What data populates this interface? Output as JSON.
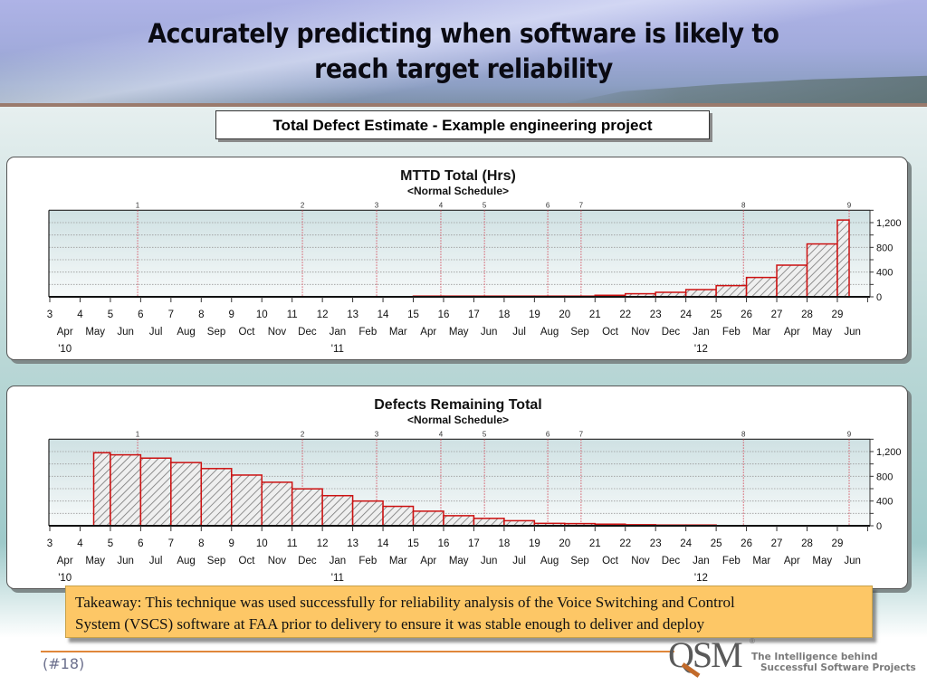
{
  "slide": {
    "title_line1": "Accurately predicting when software is likely to",
    "title_line2": "reach target reliability",
    "subtitle": "Total Defect Estimate - Example engineering project",
    "takeaway_line1": "Takeaway: This technique was used successfully for reliability analysis of the Voice Switching and Control",
    "takeaway_line2": "System (VSCS) software at FAA prior to delivery to ensure it was stable enough to deliver and deploy",
    "page_number": "(#18)",
    "logo_text": "QSM",
    "logo_registered": "®",
    "tagline_line1": "The Intelligence behind",
    "tagline_line2": "Successful Software Projects",
    "colors": {
      "bar_stroke": "#cc1111",
      "bar_hatch": "#777777",
      "milestone_line": "#d44a5a",
      "takeaway_bg": "#fdc766",
      "footer_rule": "#e0873a"
    }
  },
  "chart_data": [
    {
      "type": "bar",
      "title": "MTTD Total (Hrs)",
      "subtitle": "<Normal Schedule>",
      "xlabel": "",
      "ylabel": "",
      "ylim": [
        0,
        1400
      ],
      "yticks": [
        0,
        400,
        800,
        1200
      ],
      "ytick_labels": [
        "0",
        "400",
        "800",
        "1,200"
      ],
      "y_minor_step": 200,
      "grid": true,
      "x_range": [
        3,
        30
      ],
      "x_ticks": [
        3,
        4,
        5,
        6,
        7,
        8,
        9,
        10,
        11,
        12,
        13,
        14,
        15,
        16,
        17,
        18,
        19,
        20,
        21,
        22,
        23,
        24,
        25,
        26,
        27,
        28,
        29
      ],
      "month_labels": [
        "Apr",
        "May",
        "Jun",
        "Jul",
        "Aug",
        "Sep",
        "Oct",
        "Nov",
        "Dec",
        "Jan",
        "Feb",
        "Mar",
        "Apr",
        "May",
        "Jun",
        "Jul",
        "Aug",
        "Sep",
        "Oct",
        "Nov",
        "Dec",
        "Jan",
        "Feb",
        "Mar",
        "Apr",
        "May",
        "Jun"
      ],
      "year_labels": [
        {
          "index": 0,
          "label": "'10"
        },
        {
          "index": 9,
          "label": "'11"
        },
        {
          "index": 21,
          "label": "'12"
        }
      ],
      "milestones": [
        {
          "label": "1",
          "x": 5.9
        },
        {
          "label": "2",
          "x": 11.34
        },
        {
          "label": "3",
          "x": 13.79
        },
        {
          "label": "4",
          "x": 15.91
        },
        {
          "label": "5",
          "x": 17.35
        },
        {
          "label": "6",
          "x": 19.44
        },
        {
          "label": "7",
          "x": 20.54
        },
        {
          "label": "8",
          "x": 25.9
        },
        {
          "label": "9",
          "x": 29.39
        }
      ],
      "bars": [
        {
          "x0": 15,
          "x1": 16,
          "value": 1
        },
        {
          "x0": 16,
          "x1": 17,
          "value": 1
        },
        {
          "x0": 17,
          "x1": 18,
          "value": 2
        },
        {
          "x0": 18,
          "x1": 19,
          "value": 3
        },
        {
          "x0": 19,
          "x1": 20,
          "value": 7
        },
        {
          "x0": 20,
          "x1": 21,
          "value": 10
        },
        {
          "x0": 21,
          "x1": 22,
          "value": 25
        },
        {
          "x0": 22,
          "x1": 23,
          "value": 50
        },
        {
          "x0": 23,
          "x1": 24,
          "value": 73
        },
        {
          "x0": 24,
          "x1": 25,
          "value": 117
        },
        {
          "x0": 25,
          "x1": 26,
          "value": 181
        },
        {
          "x0": 26,
          "x1": 27,
          "value": 313
        },
        {
          "x0": 27,
          "x1": 28,
          "value": 512
        },
        {
          "x0": 28,
          "x1": 29,
          "value": 855
        },
        {
          "x0": 29,
          "x1": 29.39,
          "value": 1242
        }
      ]
    },
    {
      "type": "bar",
      "title": "Defects Remaining Total",
      "subtitle": "<Normal Schedule>",
      "xlabel": "",
      "ylabel": "",
      "ylim": [
        0,
        1400
      ],
      "yticks": [
        0,
        400,
        800,
        1200
      ],
      "ytick_labels": [
        "0",
        "400",
        "800",
        "1,200"
      ],
      "y_minor_step": 200,
      "grid": true,
      "x_range": [
        3,
        30
      ],
      "x_ticks": [
        3,
        4,
        5,
        6,
        7,
        8,
        9,
        10,
        11,
        12,
        13,
        14,
        15,
        16,
        17,
        18,
        19,
        20,
        21,
        22,
        23,
        24,
        25,
        26,
        27,
        28,
        29
      ],
      "month_labels": [
        "Apr",
        "May",
        "Jun",
        "Jul",
        "Aug",
        "Sep",
        "Oct",
        "Nov",
        "Dec",
        "Jan",
        "Feb",
        "Mar",
        "Apr",
        "May",
        "Jun",
        "Jul",
        "Aug",
        "Sep",
        "Oct",
        "Nov",
        "Dec",
        "Jan",
        "Feb",
        "Mar",
        "Apr",
        "May",
        "Jun"
      ],
      "year_labels": [
        {
          "index": 0,
          "label": "'10"
        },
        {
          "index": 9,
          "label": "'11"
        },
        {
          "index": 21,
          "label": "'12"
        }
      ],
      "milestones": [
        {
          "label": "1",
          "x": 5.9
        },
        {
          "label": "2",
          "x": 11.34
        },
        {
          "label": "3",
          "x": 13.79
        },
        {
          "label": "4",
          "x": 15.91
        },
        {
          "label": "5",
          "x": 17.35
        },
        {
          "label": "6",
          "x": 19.44
        },
        {
          "label": "7",
          "x": 20.54
        },
        {
          "label": "8",
          "x": 25.9
        },
        {
          "label": "9",
          "x": 29.39
        }
      ],
      "bars": [
        {
          "x0": 4.45,
          "x1": 5,
          "value": 1181
        },
        {
          "x0": 5,
          "x1": 6,
          "value": 1147
        },
        {
          "x0": 6,
          "x1": 7,
          "value": 1094
        },
        {
          "x0": 7,
          "x1": 8,
          "value": 1022
        },
        {
          "x0": 8,
          "x1": 9,
          "value": 925
        },
        {
          "x0": 9,
          "x1": 10,
          "value": 820
        },
        {
          "x0": 10,
          "x1": 11,
          "value": 704
        },
        {
          "x0": 11,
          "x1": 12,
          "value": 597
        },
        {
          "x0": 12,
          "x1": 13,
          "value": 487
        },
        {
          "x0": 13,
          "x1": 14,
          "value": 400
        },
        {
          "x0": 14,
          "x1": 15,
          "value": 314
        },
        {
          "x0": 15,
          "x1": 16,
          "value": 236
        },
        {
          "x0": 16,
          "x1": 17,
          "value": 163
        },
        {
          "x0": 17,
          "x1": 18,
          "value": 120
        },
        {
          "x0": 18,
          "x1": 19,
          "value": 82
        },
        {
          "x0": 19,
          "x1": 20,
          "value": 39
        },
        {
          "x0": 20,
          "x1": 21,
          "value": 35
        },
        {
          "x0": 21,
          "x1": 22,
          "value": 26
        },
        {
          "x0": 22,
          "x1": 23,
          "value": 17
        },
        {
          "x0": 23,
          "x1": 24,
          "value": 5
        },
        {
          "x0": 24,
          "x1": 25,
          "value": 3
        }
      ]
    }
  ]
}
